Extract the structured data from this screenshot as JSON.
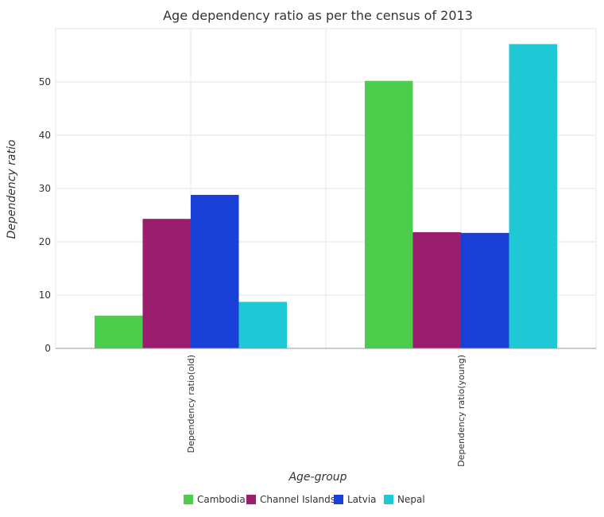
{
  "chart_data": {
    "type": "bar",
    "title": "Age dependency ratio as per the census of 2013",
    "xlabel": "Age-group",
    "ylabel": "Dependency ratio",
    "categories": [
      "Dependency ratio(old)",
      "Dependency ratio(young)"
    ],
    "series": [
      {
        "name": "Cambodia",
        "color": "#4ccd4c",
        "values": [
          6.15,
          50.2
        ]
      },
      {
        "name": "Channel Islands",
        "color": "#9b1e6e",
        "values": [
          24.3,
          21.8
        ]
      },
      {
        "name": "Latvia",
        "color": "#1a3fd6",
        "values": [
          28.8,
          21.67
        ]
      },
      {
        "name": "Nepal",
        "color": "#1ec8d4",
        "values": [
          8.73,
          57.1
        ]
      }
    ],
    "ylim": [
      0,
      60
    ],
    "yticks": [
      0,
      10,
      20,
      30,
      40,
      50
    ],
    "grid": true,
    "legend_position": "bottom"
  }
}
